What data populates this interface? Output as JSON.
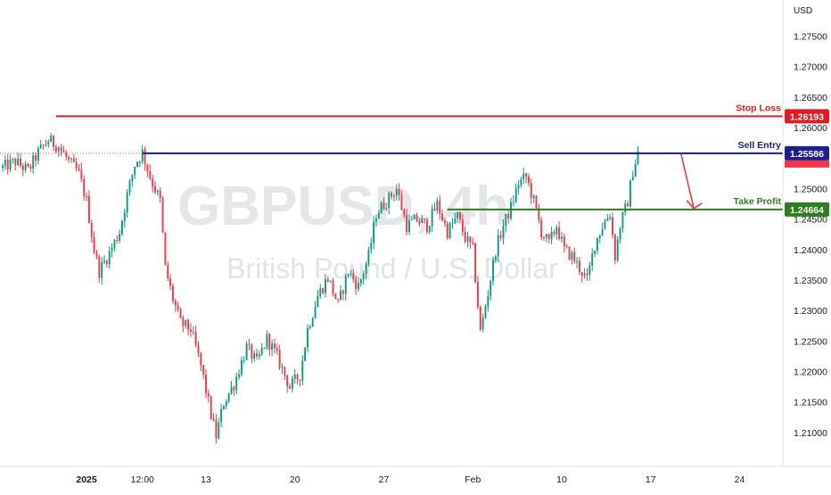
{
  "chart_data": {
    "type": "candlestick",
    "watermark": {
      "symbol": "GBPUSD, 4h",
      "name": "British Pound / U.S. Dollar"
    },
    "currency_label": "USD",
    "y_ticks": [
      1.275,
      1.27,
      1.265,
      1.26,
      1.255,
      1.25,
      1.245,
      1.24,
      1.235,
      1.23,
      1.225,
      1.22,
      1.215,
      1.21
    ],
    "y_tick_labels": [
      "1.27500",
      "1.27000",
      "1.26500",
      "1.26000",
      "1.25500",
      "1.25000",
      "1.24500",
      "1.24000",
      "1.23500",
      "1.23000",
      "1.22500",
      "1.22000",
      "1.21500",
      "1.21000"
    ],
    "ylim": [
      1.2045,
      1.281
    ],
    "x_index_range": [
      0,
      300
    ],
    "x_ticks": [
      {
        "label": "2025",
        "index": 33,
        "bold": true
      },
      {
        "label": "12:00",
        "index": 55
      },
      {
        "label": "13",
        "index": 80
      },
      {
        "label": "20",
        "index": 115
      },
      {
        "label": "27",
        "index": 150
      },
      {
        "label": "Feb",
        "index": 185
      },
      {
        "label": "10",
        "index": 220
      },
      {
        "label": "17",
        "index": 255
      },
      {
        "label": "24",
        "index": 290
      }
    ],
    "levels": [
      {
        "name": "Stop Loss",
        "value": 1.26193,
        "value_label": "1.26193",
        "color": "#e11b22",
        "start_index": 21,
        "end_index": 313
      },
      {
        "name": "Sell Entry",
        "value": 1.25586,
        "value_label": "1.25586",
        "color": "#1b1f8f",
        "start_index": 55,
        "end_index": 313
      },
      {
        "name": "Take Profit",
        "value": 1.24664,
        "value_label": "1.24664",
        "color": "#2e7d1e",
        "start_index": 175,
        "end_index": 313
      }
    ],
    "current_price_tag": {
      "value": 1.25586,
      "color": "#f23645"
    },
    "arrow": {
      "from_index": 267,
      "from_value": 1.2557,
      "to_index": 272,
      "to_value": 1.2468,
      "color": "#f23645"
    },
    "waypoints": [
      [
        0,
        1.2535
      ],
      [
        5,
        1.2545
      ],
      [
        10,
        1.253
      ],
      [
        14,
        1.256
      ],
      [
        18,
        1.258
      ],
      [
        22,
        1.257
      ],
      [
        26,
        1.2545
      ],
      [
        30,
        1.2525
      ],
      [
        33,
        1.248
      ],
      [
        36,
        1.24
      ],
      [
        38,
        1.2365
      ],
      [
        42,
        1.2395
      ],
      [
        46,
        1.243
      ],
      [
        49,
        1.249
      ],
      [
        52,
        1.254
      ],
      [
        55,
        1.256
      ],
      [
        58,
        1.252
      ],
      [
        62,
        1.248
      ],
      [
        64,
        1.237
      ],
      [
        67,
        1.232
      ],
      [
        70,
        1.228
      ],
      [
        74,
        1.227
      ],
      [
        78,
        1.221
      ],
      [
        82,
        1.213
      ],
      [
        84,
        1.2095
      ],
      [
        87,
        1.215
      ],
      [
        91,
        1.218
      ],
      [
        96,
        1.224
      ],
      [
        100,
        1.2215
      ],
      [
        104,
        1.2255
      ],
      [
        108,
        1.2225
      ],
      [
        113,
        1.2175
      ],
      [
        117,
        1.2195
      ],
      [
        120,
        1.227
      ],
      [
        124,
        1.2325
      ],
      [
        128,
        1.2355
      ],
      [
        132,
        1.231
      ],
      [
        136,
        1.2365
      ],
      [
        140,
        1.234
      ],
      [
        144,
        1.239
      ],
      [
        147,
        1.246
      ],
      [
        151,
        1.248
      ],
      [
        155,
        1.25
      ],
      [
        159,
        1.244
      ],
      [
        163,
        1.245
      ],
      [
        167,
        1.244
      ],
      [
        171,
        1.2475
      ],
      [
        175,
        1.243
      ],
      [
        179,
        1.2455
      ],
      [
        182,
        1.242
      ],
      [
        185,
        1.24
      ],
      [
        187,
        1.231
      ],
      [
        188,
        1.2265
      ],
      [
        191,
        1.233
      ],
      [
        194,
        1.24
      ],
      [
        197,
        1.244
      ],
      [
        200,
        1.247
      ],
      [
        203,
        1.251
      ],
      [
        206,
        1.252
      ],
      [
        209,
        1.248
      ],
      [
        212,
        1.243
      ],
      [
        215,
        1.241
      ],
      [
        218,
        1.244
      ],
      [
        221,
        1.24
      ],
      [
        224,
        1.239
      ],
      [
        227,
        1.237
      ],
      [
        230,
        1.235
      ],
      [
        233,
        1.241
      ],
      [
        236,
        1.244
      ],
      [
        239,
        1.246
      ],
      [
        241,
        1.239
      ],
      [
        243,
        1.244
      ],
      [
        246,
        1.248
      ],
      [
        248,
        1.253
      ],
      [
        250,
        1.256
      ]
    ]
  }
}
